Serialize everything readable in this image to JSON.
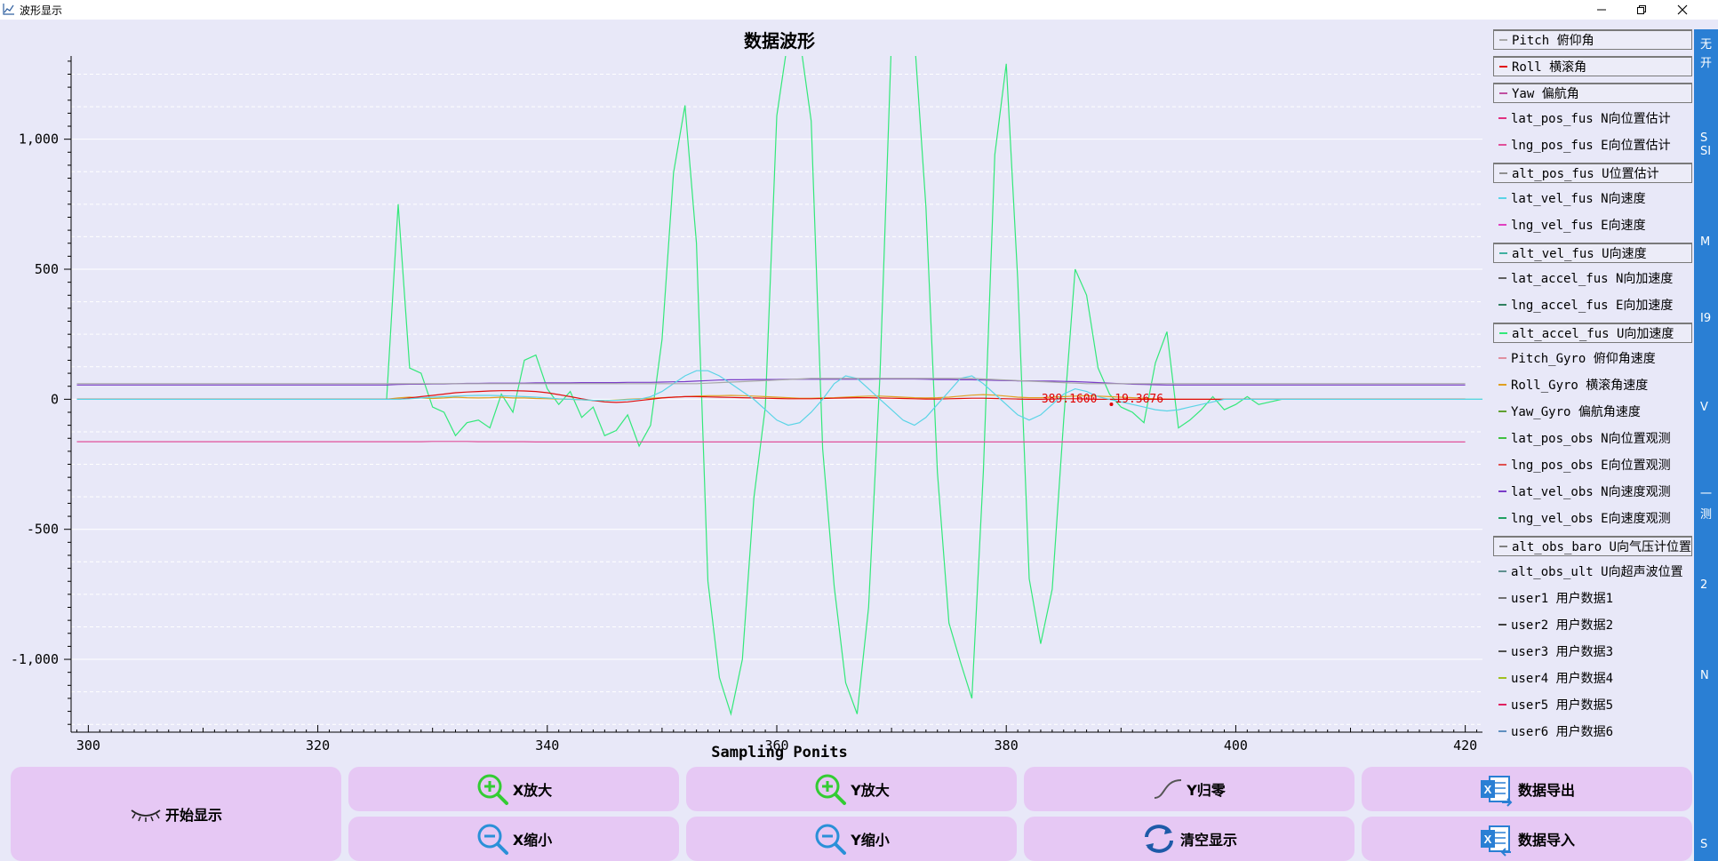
{
  "window": {
    "title": "波形显示",
    "icons": {
      "app": "chart-icon",
      "minimize": "minimize-icon",
      "restore": "restore-icon",
      "close": "close-icon"
    }
  },
  "chart_data": {
    "type": "line",
    "title": "数据波形",
    "xlabel": "Sampling Ponits",
    "ylabel": "",
    "xlim": [
      298.5,
      421.5
    ],
    "ylim": [
      -1280,
      1320
    ],
    "x_ticks": [
      300,
      320,
      340,
      360,
      380,
      400,
      420
    ],
    "y_ticks": [
      {
        "value": 1000,
        "label": "1,000"
      },
      {
        "value": 500,
        "label": "500"
      },
      {
        "value": 0,
        "label": "0"
      },
      {
        "value": -500,
        "label": "-500"
      },
      {
        "value": -1000,
        "label": "-1,000"
      }
    ],
    "grid": true,
    "legend_position": "right",
    "cursor_readout": {
      "x": 389.16,
      "y": -19.3676,
      "text_x": "389.1600",
      "text_y": "-19.3676",
      "color": "#e00000"
    },
    "series": [
      {
        "name": "alt_accel_fus U向加速度",
        "color": "#33e87a",
        "x_start": 299,
        "values": [
          0,
          0,
          0,
          0,
          0,
          0,
          0,
          0,
          0,
          0,
          0,
          0,
          0,
          0,
          0,
          0,
          0,
          0,
          0,
          0,
          0,
          0,
          0,
          0,
          0,
          0,
          0,
          0,
          750,
          120,
          100,
          -30,
          -50,
          -140,
          -90,
          -80,
          -110,
          20,
          -50,
          150,
          170,
          40,
          -20,
          30,
          -70,
          -30,
          -140,
          -120,
          -60,
          -180,
          -100,
          230,
          870,
          1130,
          600,
          -700,
          -1070,
          -1210,
          -1000,
          -380,
          -30,
          1090,
          1390,
          1390,
          1070,
          -190,
          -720,
          -1090,
          -1210,
          -800,
          100,
          1390,
          1390,
          1390,
          740,
          -280,
          -860,
          -1010,
          -1150,
          -280,
          940,
          1290,
          460,
          -690,
          -940,
          -730,
          -80,
          500,
          400,
          120,
          20,
          -30,
          -50,
          -90,
          140,
          260,
          -110,
          -80,
          -40,
          10,
          -40,
          -20,
          10,
          -20,
          -10,
          0,
          0,
          0,
          0,
          0,
          0,
          0,
          0,
          0,
          0,
          0,
          0,
          0,
          0,
          0,
          0,
          0,
          0,
          0,
          0,
          0
        ]
      },
      {
        "name": "lng_pos_fus E向位置估计",
        "color": "#e0509a",
        "x_start": 299,
        "values": [
          -163,
          -163,
          -163,
          -163,
          -163,
          -163,
          -163,
          -163,
          -163,
          -163,
          -163,
          -163,
          -163,
          -163,
          -163,
          -163,
          -163,
          -163,
          -163,
          -163,
          -163,
          -163,
          -163,
          -163,
          -163,
          -163,
          -163,
          -163,
          -163,
          -163,
          -163,
          -162,
          -162,
          -162,
          -162,
          -163,
          -163,
          -163,
          -163,
          -163,
          -164,
          -164,
          -164,
          -164,
          -164,
          -164,
          -164,
          -164,
          -164,
          -164,
          -164,
          -164,
          -164,
          -164,
          -164,
          -164,
          -164,
          -164,
          -164,
          -164,
          -164,
          -164,
          -164,
          -164,
          -164,
          -164,
          -164,
          -164,
          -164,
          -164,
          -164,
          -164,
          -164,
          -164,
          -164,
          -164,
          -164,
          -164,
          -164,
          -164,
          -164,
          -164,
          -164,
          -164,
          -164,
          -164,
          -164,
          -164,
          -164,
          -164,
          -164,
          -164,
          -164,
          -164,
          -164,
          -164,
          -164,
          -164,
          -164,
          -164,
          -164,
          -164,
          -164,
          -164,
          -164,
          -164,
          -164,
          -164,
          -164,
          -164,
          -164,
          -164,
          -164,
          -164,
          -164,
          -164,
          -164,
          -164,
          -164,
          -164,
          -164,
          -164
        ]
      },
      {
        "name": "lat_vel_obs N向速度观测",
        "color": "#7a3cc8",
        "x_start": 299,
        "values": [
          55,
          55,
          55,
          55,
          55,
          55,
          55,
          55,
          55,
          55,
          55,
          55,
          55,
          55,
          55,
          55,
          55,
          55,
          55,
          55,
          55,
          55,
          55,
          55,
          55,
          55,
          55,
          55,
          57,
          58,
          58,
          59,
          59,
          60,
          61,
          61,
          62,
          62,
          62,
          62,
          63,
          63,
          63,
          63,
          64,
          64,
          64,
          64,
          65,
          65,
          65,
          66,
          67,
          68,
          70,
          72,
          74,
          75,
          75,
          76,
          76,
          76,
          77,
          77,
          77,
          77,
          77,
          77,
          77,
          77,
          78,
          78,
          78,
          78,
          77,
          76,
          76,
          75,
          75,
          74,
          73,
          72,
          71,
          71,
          70,
          70,
          69,
          68,
          66,
          64,
          62,
          60,
          58,
          57,
          56,
          55,
          55,
          55,
          55,
          55,
          55,
          55,
          55,
          55,
          55,
          55,
          55,
          55,
          55,
          55,
          55,
          55,
          55,
          55,
          55,
          55,
          55,
          55,
          55,
          55,
          55,
          55
        ]
      },
      {
        "name": "Roll_Gyro 横滚角速度",
        "color": "#e0a020",
        "x_start": 299,
        "values": [
          0,
          0,
          0,
          0,
          0,
          0,
          0,
          0,
          0,
          0,
          0,
          0,
          0,
          0,
          0,
          0,
          0,
          0,
          0,
          0,
          0,
          0,
          0,
          0,
          0,
          0,
          0,
          0,
          5,
          8,
          5,
          3,
          5,
          8,
          6,
          5,
          6,
          8,
          5,
          5,
          3,
          2,
          1,
          0,
          -2,
          -5,
          -5,
          -3,
          0,
          2,
          4,
          6,
          8,
          10,
          12,
          14,
          14,
          15,
          14,
          12,
          10,
          8,
          6,
          4,
          4,
          5,
          6,
          8,
          10,
          12,
          12,
          10,
          8,
          6,
          5,
          6,
          8,
          12,
          16,
          18,
          16,
          12,
          8,
          6,
          6,
          8,
          10,
          12,
          14,
          12,
          10,
          8,
          6,
          4,
          2,
          1,
          0,
          0,
          0,
          0,
          0,
          0,
          0,
          0,
          0,
          0,
          0,
          0,
          0,
          0,
          0,
          0,
          0,
          0,
          0,
          0,
          0,
          0,
          0,
          0,
          0,
          0
        ]
      },
      {
        "name": "Roll 横滚角",
        "color": "#e01010",
        "x_start": 299,
        "values": [
          0,
          0,
          0,
          0,
          0,
          0,
          0,
          0,
          0,
          0,
          0,
          0,
          0,
          0,
          0,
          0,
          0,
          0,
          0,
          0,
          0,
          0,
          0,
          0,
          0,
          0,
          0,
          0,
          0,
          5,
          10,
          15,
          20,
          25,
          28,
          30,
          32,
          33,
          33,
          32,
          30,
          25,
          18,
          10,
          2,
          -5,
          -10,
          -12,
          -10,
          -5,
          0,
          5,
          8,
          10,
          10,
          9,
          8,
          7,
          6,
          5,
          4,
          3,
          2,
          2,
          2,
          3,
          4,
          5,
          6,
          6,
          5,
          4,
          3,
          2,
          1,
          1,
          2,
          3,
          4,
          4,
          3,
          2,
          1,
          0,
          0,
          1,
          2,
          2,
          1,
          0,
          0,
          0,
          0,
          0,
          0,
          0,
          0,
          0,
          0,
          0,
          0,
          0,
          0,
          0,
          0,
          0,
          0,
          0,
          0,
          0,
          0,
          0,
          0,
          0,
          0,
          0,
          0,
          0,
          0,
          0,
          0,
          0
        ]
      },
      {
        "name": "lat_vel_fus N向速度",
        "color": "#5ad4e6",
        "x_start": 299,
        "values": [
          0,
          0,
          0,
          0,
          0,
          0,
          0,
          0,
          0,
          0,
          0,
          0,
          0,
          0,
          0,
          0,
          0,
          0,
          0,
          0,
          0,
          0,
          0,
          0,
          0,
          0,
          0,
          0,
          0,
          2,
          5,
          8,
          10,
          12,
          14,
          15,
          15,
          14,
          12,
          10,
          8,
          5,
          2,
          0,
          -2,
          -4,
          -5,
          -4,
          -2,
          0,
          10,
          30,
          60,
          90,
          110,
          110,
          90,
          60,
          30,
          0,
          -40,
          -80,
          -100,
          -90,
          -50,
          0,
          60,
          90,
          80,
          40,
          0,
          -40,
          -80,
          -100,
          -70,
          -20,
          30,
          80,
          90,
          60,
          20,
          -20,
          -60,
          -80,
          -60,
          -20,
          20,
          40,
          30,
          10,
          0,
          -10,
          -20,
          -30,
          -40,
          -45,
          -40,
          -30,
          -20,
          -10,
          0,
          0,
          0,
          0,
          0,
          0,
          0,
          0,
          0,
          0,
          0,
          0,
          0,
          0,
          0,
          0,
          0,
          0,
          0,
          0,
          0,
          0,
          0,
          0,
          0,
          0,
          0
        ]
      },
      {
        "name": "Pitch 俯仰角",
        "color": "#a8a8a8",
        "x_start": 299,
        "values": [
          60,
          60,
          60,
          60,
          60,
          60,
          60,
          60,
          60,
          60,
          60,
          60,
          60,
          60,
          60,
          60,
          60,
          60,
          60,
          60,
          60,
          60,
          60,
          60,
          60,
          60,
          60,
          60,
          60,
          60,
          60,
          60,
          60,
          60,
          60,
          60,
          60,
          60,
          60,
          60,
          60,
          60,
          60,
          60,
          60,
          60,
          60,
          60,
          60,
          60,
          60,
          60,
          60,
          60,
          60,
          62,
          64,
          66,
          68,
          70,
          72,
          74,
          76,
          78,
          80,
          80,
          80,
          80,
          80,
          80,
          80,
          80,
          80,
          80,
          80,
          80,
          80,
          80,
          80,
          78,
          76,
          74,
          72,
          70,
          68,
          66,
          64,
          62,
          60,
          60,
          60,
          60,
          60,
          60,
          60,
          60,
          60,
          60,
          60,
          60,
          60,
          60,
          60,
          60,
          60,
          60,
          60,
          60,
          60,
          60,
          60,
          60,
          60,
          60,
          60,
          60,
          60,
          60,
          60,
          60,
          60,
          60
        ]
      }
    ]
  },
  "legend": {
    "items": [
      {
        "label": "Pitch 俯仰角",
        "color": "#a8a8a8",
        "boxed": true
      },
      {
        "label": "Roll 横滚角",
        "color": "#e01010",
        "boxed": true
      },
      {
        "label": "Yaw 偏航角",
        "color": "#c050a0",
        "boxed": true
      },
      {
        "label": "lat_pos_fus N向位置估计",
        "color": "#e03080",
        "boxed": false
      },
      {
        "label": "lng_pos_fus E向位置估计",
        "color": "#e0509a",
        "boxed": false
      },
      {
        "label": "alt_pos_fus U位置估计",
        "color": "#909090",
        "boxed": true
      },
      {
        "label": "lat_vel_fus N向速度",
        "color": "#5ad4e6",
        "boxed": false
      },
      {
        "label": "lng_vel_fus E向速度",
        "color": "#e040c0",
        "boxed": false
      },
      {
        "label": "alt_vel_fus U向速度",
        "color": "#40b0a0",
        "boxed": true
      },
      {
        "label": "lat_accel_fus N向加速度",
        "color": "#606060",
        "boxed": false
      },
      {
        "label": "lng_accel_fus E向加速度",
        "color": "#308060",
        "boxed": false
      },
      {
        "label": "alt_accel_fus U向加速度",
        "color": "#33e87a",
        "boxed": true
      },
      {
        "label": "Pitch_Gyro 俯仰角速度",
        "color": "#e090a0",
        "boxed": false
      },
      {
        "label": "Roll_Gyro 横滚角速度",
        "color": "#e0a020",
        "boxed": false
      },
      {
        "label": "Yaw_Gyro 偏航角速度",
        "color": "#60a030",
        "boxed": false
      },
      {
        "label": "lat_pos_obs N向位置观测",
        "color": "#40c040",
        "boxed": false
      },
      {
        "label": "lng_pos_obs E向位置观测",
        "color": "#e05050",
        "boxed": false
      },
      {
        "label": "lat_vel_obs N向速度观测",
        "color": "#7a3cc8",
        "boxed": false
      },
      {
        "label": "lng_vel_obs E向速度观测",
        "color": "#20a060",
        "boxed": false
      },
      {
        "label": "alt_obs_baro U向气压计位置",
        "color": "#808080",
        "boxed": true
      },
      {
        "label": "alt_obs_ult U向超声波位置",
        "color": "#609090",
        "boxed": false
      },
      {
        "label": "user1 用户数据1",
        "color": "#707070",
        "boxed": false
      },
      {
        "label": "user2 用户数据2",
        "color": "#404040",
        "boxed": false
      },
      {
        "label": "user3 用户数据3",
        "color": "#505050",
        "boxed": false
      },
      {
        "label": "user4 用户数据4",
        "color": "#a0c020",
        "boxed": false
      },
      {
        "label": "user5 用户数据5",
        "color": "#e02060",
        "boxed": false
      },
      {
        "label": "user6 用户数据6",
        "color": "#6090c0",
        "boxed": false
      }
    ]
  },
  "right_strip": {
    "chars": [
      "无",
      "开",
      "S",
      "SI",
      "M",
      "I9",
      "V",
      "一",
      "测",
      "2",
      "N",
      "S"
    ]
  },
  "buttons": {
    "start": {
      "label": "开始显示",
      "icon": "eye-closed-icon"
    },
    "x_zoom_in": {
      "label": "X放大",
      "icon": "zoom-in-icon"
    },
    "y_zoom_in": {
      "label": "Y放大",
      "icon": "zoom-in-icon"
    },
    "y_reset": {
      "label": "Y归零",
      "icon": "curve-icon"
    },
    "export": {
      "label": "数据导出",
      "icon": "excel-export-icon"
    },
    "x_zoom_out": {
      "label": "X缩小",
      "icon": "zoom-out-icon"
    },
    "y_zoom_out": {
      "label": "Y缩小",
      "icon": "zoom-out-icon"
    },
    "clear": {
      "label": "清空显示",
      "icon": "refresh-icon"
    },
    "import": {
      "label": "数据导入",
      "icon": "excel-import-icon"
    }
  },
  "colors": {
    "accent_button": "#e6c8f4",
    "plot_background": "#e8e8f8",
    "zoom_icon": "#33cc33",
    "zoom_out_icon": "#2a90d8",
    "excel_icon": "#2a7fd4"
  }
}
